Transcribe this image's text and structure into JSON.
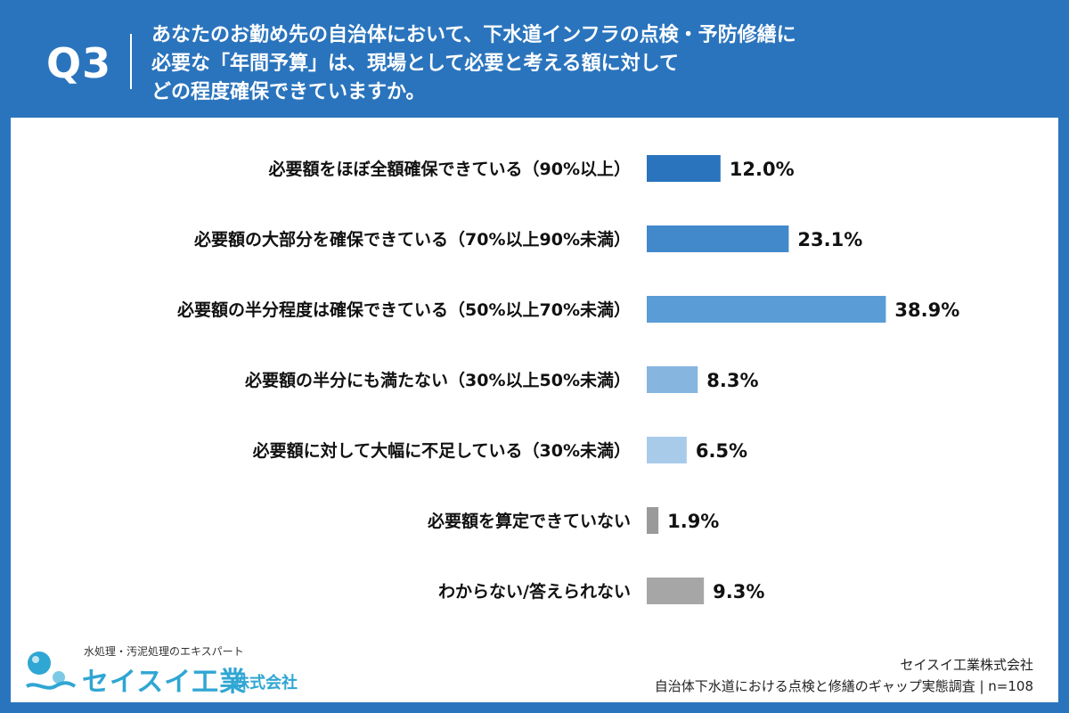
{
  "header": {
    "question_id": "Q3",
    "question_lines": [
      "あなたのお勤め先の自治体において、下水道インフラの点検・予防修繕に",
      "必要な「年間予算」は、現場として必要と考える額に対して",
      "どの程度確保できていますか。"
    ]
  },
  "chart_data": {
    "type": "bar",
    "orientation": "horizontal",
    "categories": [
      "必要額をほぼ全額確保できている（90%以上）",
      "必要額の大部分を確保できている（70%以上90%未満）",
      "必要額の半分程度は確保できている（50%以上70%未満）",
      "必要額の半分にも満たない（30%以上50%未満）",
      "必要額に対して大幅に不足している（30%未満）",
      "必要額を算定できていない",
      "わからない/答えられない"
    ],
    "values": [
      12.0,
      23.1,
      38.9,
      8.3,
      6.5,
      1.9,
      9.3
    ],
    "value_labels": [
      "12.0%",
      "23.1%",
      "38.9%",
      "8.3%",
      "6.5%",
      "1.9%",
      "9.3%"
    ],
    "colors": [
      "#2a74bd",
      "#4289cc",
      "#5a9cd6",
      "#86b5e0",
      "#a9cbea",
      "#9a9a9a",
      "#a6a6a6"
    ],
    "unit": "%",
    "xlim": [
      0,
      40
    ],
    "grid": false,
    "legend": "none"
  },
  "logo": {
    "tagline": "水処理・汚泥処理のエキスパート",
    "name": "セイスイ工業",
    "suffix": "株式会社"
  },
  "source": {
    "company": "セイスイ工業株式会社",
    "survey": "自治体下水道における点検と修繕のギャップ実態調査 | n=108"
  }
}
